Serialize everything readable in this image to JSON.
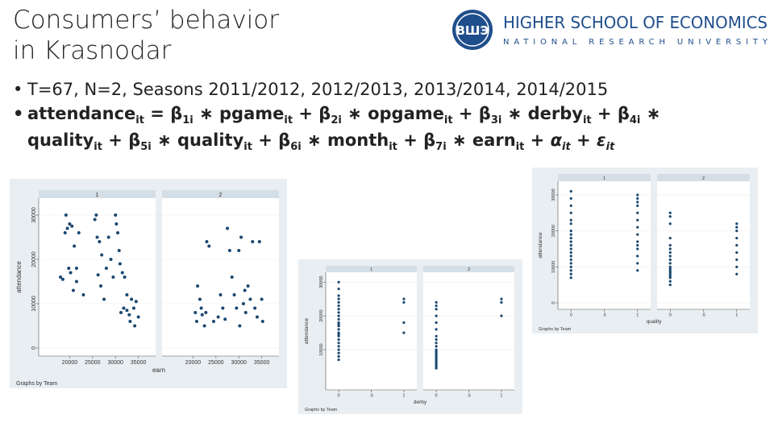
{
  "slide": {
    "title_line1": "Consumers’ behavior",
    "title_line2": "in Krasnodar",
    "logo": {
      "line1": "HIGHER SCHOOL OF ECONOMICS",
      "line2": "NATIONAL RESEARCH UNIVERSITY",
      "emblem_text": "ВШЭ",
      "brand_color": "#1f4e8c"
    },
    "bullet1": "T=67, N=2, Seasons 2011/2012, 2012/2013, 2013/2014, 2014/2015",
    "formula": {
      "attendance": "attendance",
      "pgame": "pgame",
      "opgame": "opgame",
      "derby": "derby",
      "quality": "quality",
      "month": "month",
      "earn": "earn",
      "sub_it": "it",
      "b1": "β",
      "s1": "1i",
      "b2": "β",
      "s2": "2i",
      "b3": "β",
      "s3": "3i",
      "b4": "β",
      "s4": "4i",
      "b5": "β",
      "s5": "5i",
      "b6": "β",
      "s6": "6i",
      "b7": "β",
      "s7": "7i",
      "alpha": "α",
      "eps": "ε",
      "plus": "+",
      "times": "∗",
      "eq": "="
    }
  },
  "chart_data": [
    {
      "type": "scatter",
      "facet_titles": [
        "1",
        "2"
      ],
      "xlabel": "earn",
      "ylabel": "attendance",
      "note": "Graphs by Team",
      "xlim": [
        15000,
        37000
      ],
      "ylim": [
        0,
        32000
      ],
      "x_ticks": [
        20000,
        25000,
        30000,
        35000
      ],
      "x_tick_labels": [
        "20000",
        "25000",
        "30000",
        "35000"
      ],
      "x_tick_labels_panel1": [
        "20000",
        "25000",
        "30000",
        "35000"
      ],
      "y_ticks": [
        0,
        10000,
        20000,
        30000
      ],
      "y_tick_labels": [
        "0",
        "10000",
        "20000",
        "30000"
      ],
      "series": [
        {
          "name": "1",
          "points": [
            [
              18000,
              16000
            ],
            [
              18500,
              15500
            ],
            [
              19000,
              26000
            ],
            [
              19500,
              27000
            ],
            [
              19200,
              30000
            ],
            [
              20000,
              28000
            ],
            [
              20500,
              27500
            ],
            [
              21000,
              23000
            ],
            [
              21500,
              15000
            ],
            [
              19800,
              18000
            ],
            [
              20200,
              17000
            ],
            [
              20800,
              13000
            ],
            [
              21500,
              18000
            ],
            [
              22000,
              26000
            ],
            [
              23000,
              12000
            ],
            [
              25500,
              29000
            ],
            [
              25800,
              30000
            ],
            [
              26000,
              25000
            ],
            [
              26500,
              24000
            ],
            [
              27000,
              21000
            ],
            [
              26200,
              16500
            ],
            [
              26800,
              14000
            ],
            [
              27500,
              11000
            ],
            [
              28000,
              18000
            ],
            [
              28500,
              25000
            ],
            [
              29000,
              20000
            ],
            [
              29500,
              16000
            ],
            [
              30000,
              30000
            ],
            [
              30200,
              28000
            ],
            [
              30500,
              26000
            ],
            [
              30800,
              22000
            ],
            [
              31000,
              19000
            ],
            [
              31500,
              17000
            ],
            [
              32000,
              16000
            ],
            [
              32500,
              12000
            ],
            [
              31200,
              8000
            ],
            [
              31800,
              9000
            ],
            [
              32500,
              8500
            ],
            [
              33000,
              7500
            ],
            [
              33500,
              11000
            ],
            [
              34000,
              9000
            ],
            [
              34500,
              10500
            ],
            [
              35000,
              7000
            ],
            [
              33200,
              6000
            ],
            [
              34200,
              5000
            ]
          ]
        },
        {
          "name": "2",
          "points": [
            [
              20500,
              8000
            ],
            [
              20800,
              6000
            ],
            [
              21000,
              14000
            ],
            [
              21500,
              11000
            ],
            [
              22000,
              7500
            ],
            [
              22500,
              5000
            ],
            [
              23000,
              24000
            ],
            [
              23500,
              23000
            ],
            [
              21800,
              9000
            ],
            [
              22800,
              8000
            ],
            [
              24500,
              6000
            ],
            [
              25500,
              7000
            ],
            [
              26000,
              12000
            ],
            [
              26500,
              9000
            ],
            [
              27000,
              6500
            ],
            [
              27500,
              27000
            ],
            [
              28000,
              22000
            ],
            [
              28500,
              16000
            ],
            [
              29000,
              12000
            ],
            [
              29500,
              9000
            ],
            [
              30000,
              22000
            ],
            [
              30500,
              25000
            ],
            [
              31000,
              10000
            ],
            [
              31500,
              8000
            ],
            [
              32000,
              14000
            ],
            [
              32500,
              11000
            ],
            [
              33000,
              24000
            ],
            [
              33500,
              9000
            ],
            [
              34000,
              7000
            ],
            [
              34500,
              24000
            ],
            [
              35000,
              11000
            ],
            [
              35200,
              6000
            ],
            [
              30200,
              5000
            ],
            [
              31300,
              13000
            ]
          ]
        }
      ]
    },
    {
      "type": "scatter",
      "facet_titles": [
        "1",
        "2"
      ],
      "xlabel": "derby",
      "ylabel": "attendance",
      "note": "Graphs by Team",
      "xlim": [
        -0.1,
        1.1
      ],
      "ylim": [
        0,
        31000
      ],
      "x_ticks": [
        0,
        0.5,
        1
      ],
      "x_tick_labels": [
        "0",
        ".5",
        "1"
      ],
      "y_ticks": [
        10000,
        20000,
        30000
      ],
      "y_tick_labels": [
        "10000",
        "20000",
        "30000"
      ],
      "series": [
        {
          "name": "1",
          "points": [
            [
              0,
              30000
            ],
            [
              0,
              28000
            ],
            [
              0,
              26000
            ],
            [
              0,
              24000
            ],
            [
              0,
              22000
            ],
            [
              0,
              21000
            ],
            [
              0,
              20000
            ],
            [
              0,
              19000
            ],
            [
              0,
              18000
            ],
            [
              0,
              17500
            ],
            [
              0,
              17000
            ],
            [
              0,
              16000
            ],
            [
              0,
              15000
            ],
            [
              0,
              14500
            ],
            [
              0,
              14000
            ],
            [
              0,
              13000
            ],
            [
              0,
              12000
            ],
            [
              0,
              11000
            ],
            [
              0,
              10000
            ],
            [
              0,
              9000
            ],
            [
              0,
              8000
            ],
            [
              0,
              7000
            ],
            [
              0,
              25000
            ],
            [
              0,
              23000
            ],
            [
              1,
              25000
            ],
            [
              1,
              24000
            ],
            [
              1,
              18000
            ],
            [
              1,
              15000
            ]
          ]
        },
        {
          "name": "2",
          "points": [
            [
              0,
              24000
            ],
            [
              0,
              23000
            ],
            [
              0,
              22000
            ],
            [
              0,
              20000
            ],
            [
              0,
              18000
            ],
            [
              0,
              16000
            ],
            [
              0,
              14000
            ],
            [
              0,
              13000
            ],
            [
              0,
              12000
            ],
            [
              0,
              11000
            ],
            [
              0,
              10000
            ],
            [
              0,
              9500
            ],
            [
              0,
              9000
            ],
            [
              0,
              8500
            ],
            [
              0,
              8000
            ],
            [
              0,
              7500
            ],
            [
              0,
              7000
            ],
            [
              0,
              6500
            ],
            [
              0,
              6000
            ],
            [
              0,
              5500
            ],
            [
              0,
              5000
            ],
            [
              0,
              4500
            ],
            [
              1,
              25000
            ],
            [
              1,
              24000
            ],
            [
              1,
              20000
            ]
          ]
        }
      ]
    },
    {
      "type": "scatter",
      "facet_titles": [
        "1",
        "2"
      ],
      "xlabel": "quality",
      "ylabel": "attendance",
      "note": "Graphs by Team",
      "xlim": [
        -0.1,
        1.1
      ],
      "ylim": [
        0,
        32000
      ],
      "x_ticks": [
        0,
        0.5,
        1
      ],
      "x_tick_labels": [
        "0",
        ".5",
        "1"
      ],
      "y_ticks": [
        0,
        10000,
        20000,
        30000
      ],
      "y_tick_labels": [
        "0",
        "10000",
        "20000",
        "30000"
      ],
      "series": [
        {
          "name": "1",
          "points": [
            [
              0,
              31000
            ],
            [
              0,
              29000
            ],
            [
              0,
              27000
            ],
            [
              0,
              25000
            ],
            [
              0,
              23000
            ],
            [
              0,
              22000
            ],
            [
              0,
              20000
            ],
            [
              0,
              19000
            ],
            [
              0,
              18000
            ],
            [
              0,
              17000
            ],
            [
              0,
              16000
            ],
            [
              0,
              15000
            ],
            [
              0,
              14000
            ],
            [
              0,
              13000
            ],
            [
              0,
              12000
            ],
            [
              0,
              11000
            ],
            [
              0,
              10000
            ],
            [
              0,
              9000
            ],
            [
              0,
              8000
            ],
            [
              0,
              7000
            ],
            [
              1,
              30000
            ],
            [
              1,
              29000
            ],
            [
              1,
              28000
            ],
            [
              1,
              27000
            ],
            [
              1,
              25000
            ],
            [
              1,
              23000
            ],
            [
              1,
              21000
            ],
            [
              1,
              19000
            ],
            [
              1,
              17000
            ],
            [
              1,
              16000
            ],
            [
              1,
              15000
            ],
            [
              1,
              13000
            ],
            [
              1,
              11000
            ],
            [
              1,
              9000
            ]
          ]
        },
        {
          "name": "2",
          "points": [
            [
              0,
              25000
            ],
            [
              0,
              24000
            ],
            [
              0,
              22000
            ],
            [
              0,
              18000
            ],
            [
              0,
              16000
            ],
            [
              0,
              15000
            ],
            [
              0,
              14000
            ],
            [
              0,
              13000
            ],
            [
              0,
              12000
            ],
            [
              0,
              11000
            ],
            [
              0,
              10000
            ],
            [
              0,
              9500
            ],
            [
              0,
              9000
            ],
            [
              0,
              8500
            ],
            [
              0,
              8000
            ],
            [
              0,
              7500
            ],
            [
              0,
              7000
            ],
            [
              0,
              6000
            ],
            [
              0,
              5000
            ],
            [
              1,
              22000
            ],
            [
              1,
              21000
            ],
            [
              1,
              20000
            ],
            [
              1,
              18000
            ],
            [
              1,
              16000
            ],
            [
              1,
              14000
            ],
            [
              1,
              12000
            ],
            [
              1,
              10000
            ],
            [
              1,
              8000
            ]
          ]
        }
      ]
    }
  ]
}
